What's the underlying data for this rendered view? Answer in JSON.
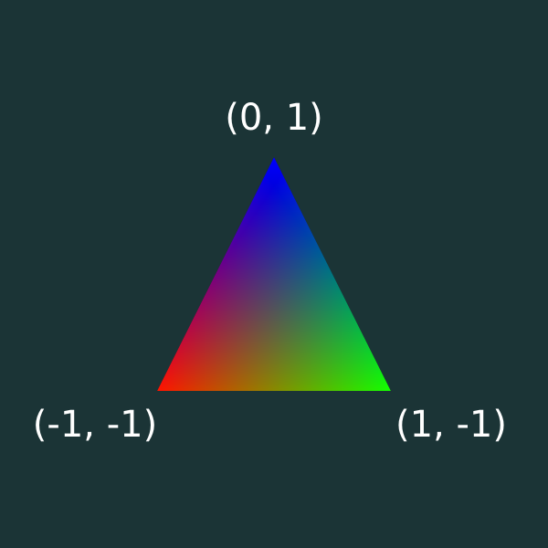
{
  "background_color": "#1b3436",
  "vertices": [
    {
      "id": "top",
      "label": "(0, 1)",
      "color": "#0000ff"
    },
    {
      "id": "left",
      "label": "(-1, -1)",
      "color": "#ff0000"
    },
    {
      "id": "right",
      "label": "(1, -1)",
      "color": "#00ff00"
    }
  ],
  "label_color": "#ffffff"
}
